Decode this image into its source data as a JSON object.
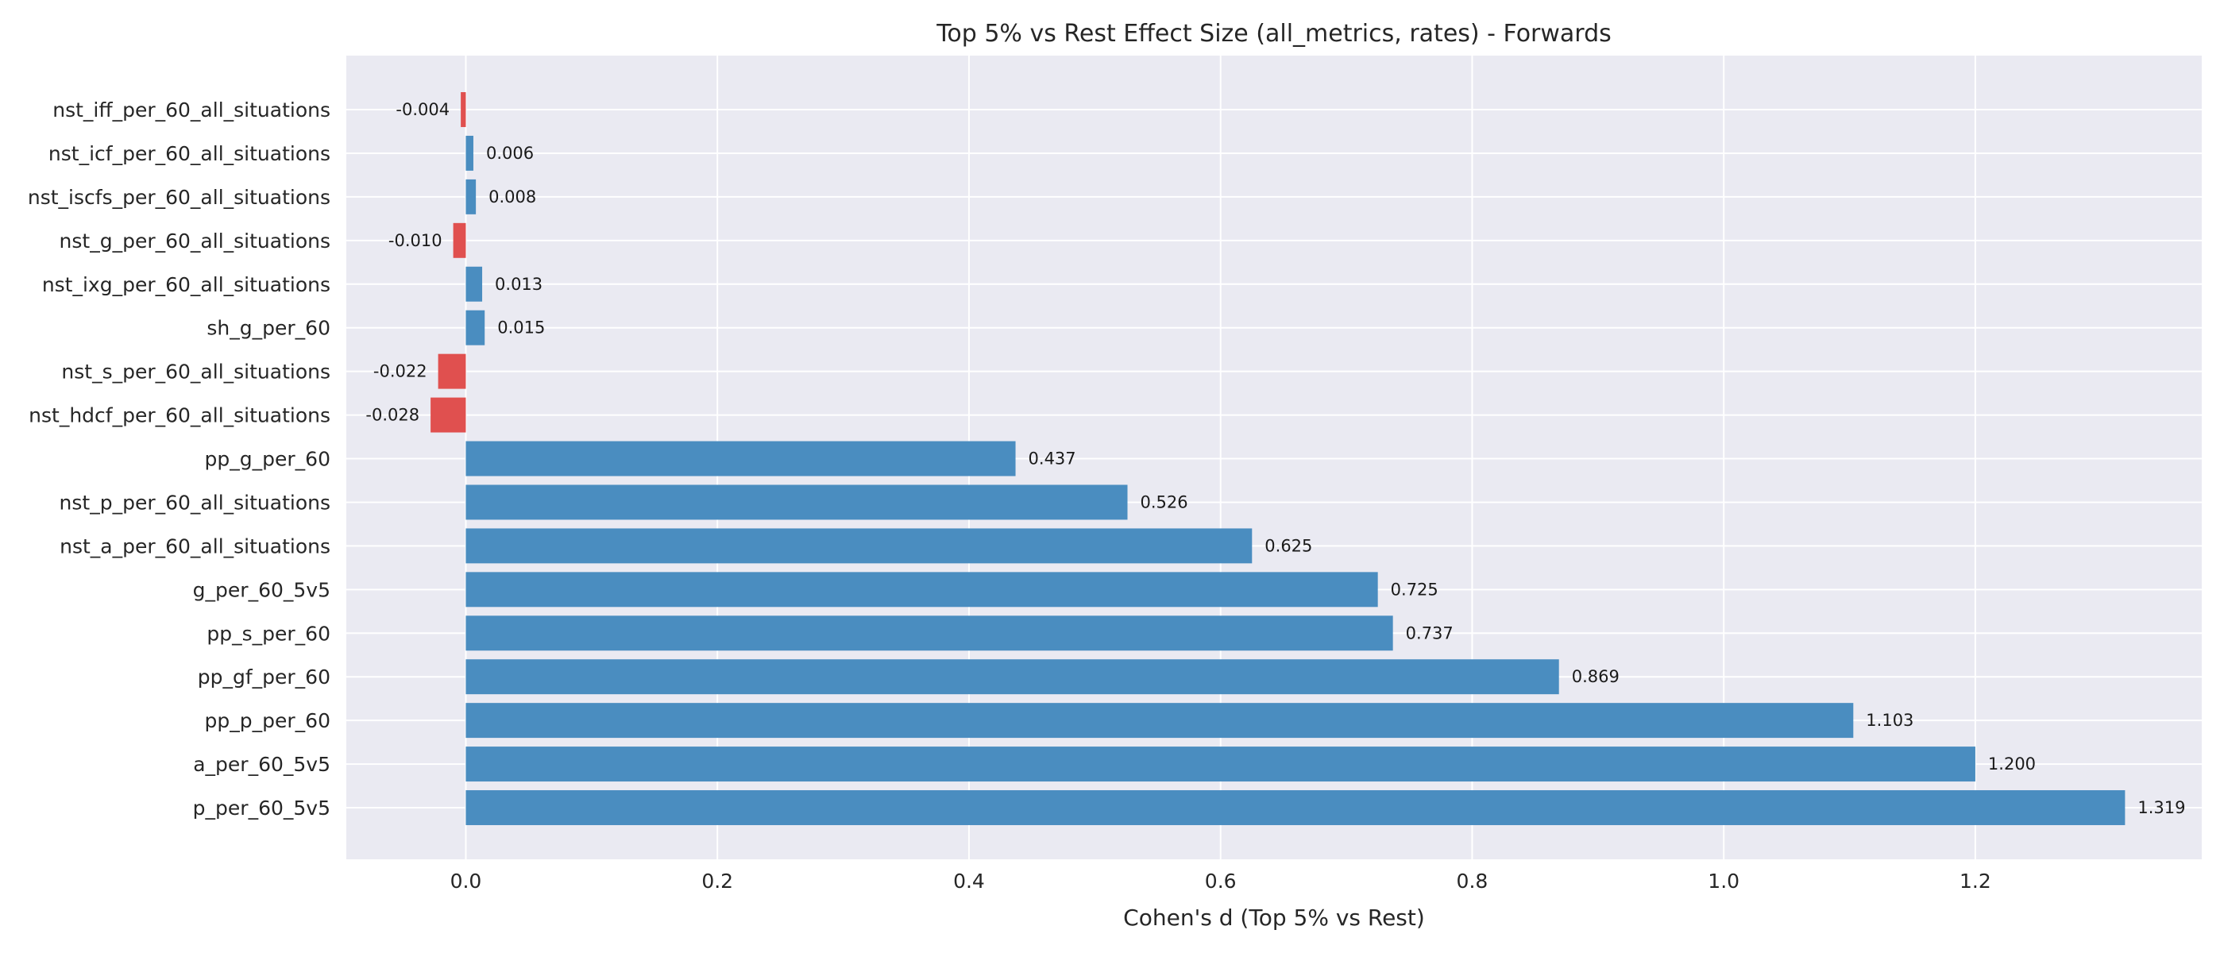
{
  "chart_data": {
    "type": "bar",
    "orientation": "horizontal",
    "title": "Top 5% vs Rest Effect Size (all_metrics, rates) - Forwards",
    "xlabel": "Cohen's d (Top 5% vs Rest)",
    "ylabel": "",
    "xlim": [
      -0.095,
      1.38
    ],
    "x_ticks": [
      0.0,
      0.2,
      0.4,
      0.6,
      0.8,
      1.0,
      1.2
    ],
    "x_tick_labels": [
      "0.0",
      "0.2",
      "0.4",
      "0.6",
      "0.8",
      "1.0",
      "1.2"
    ],
    "grid": true,
    "categories": [
      "nst_iff_per_60_all_situations",
      "nst_icf_per_60_all_situations",
      "nst_iscfs_per_60_all_situations",
      "nst_g_per_60_all_situations",
      "nst_ixg_per_60_all_situations",
      "sh_g_per_60",
      "nst_s_per_60_all_situations",
      "nst_hdcf_per_60_all_situations",
      "pp_g_per_60",
      "nst_p_per_60_all_situations",
      "nst_a_per_60_all_situations",
      "g_per_60_5v5",
      "pp_s_per_60",
      "pp_gf_per_60",
      "pp_p_per_60",
      "a_per_60_5v5",
      "p_per_60_5v5"
    ],
    "values": [
      -0.004,
      0.006,
      0.008,
      -0.01,
      0.013,
      0.015,
      -0.022,
      -0.028,
      0.437,
      0.526,
      0.625,
      0.725,
      0.737,
      0.869,
      1.103,
      1.2,
      1.319
    ],
    "value_labels": [
      "-0.004",
      "0.006",
      "0.008",
      "-0.010",
      "0.013",
      "0.015",
      "-0.022",
      "-0.028",
      "0.437",
      "0.526",
      "0.625",
      "0.725",
      "0.737",
      "0.869",
      "1.103",
      "1.200",
      "1.319"
    ],
    "colors": {
      "positive": "#4a8dc0",
      "negative": "#e0504f",
      "background": "#eaeaf2"
    }
  }
}
